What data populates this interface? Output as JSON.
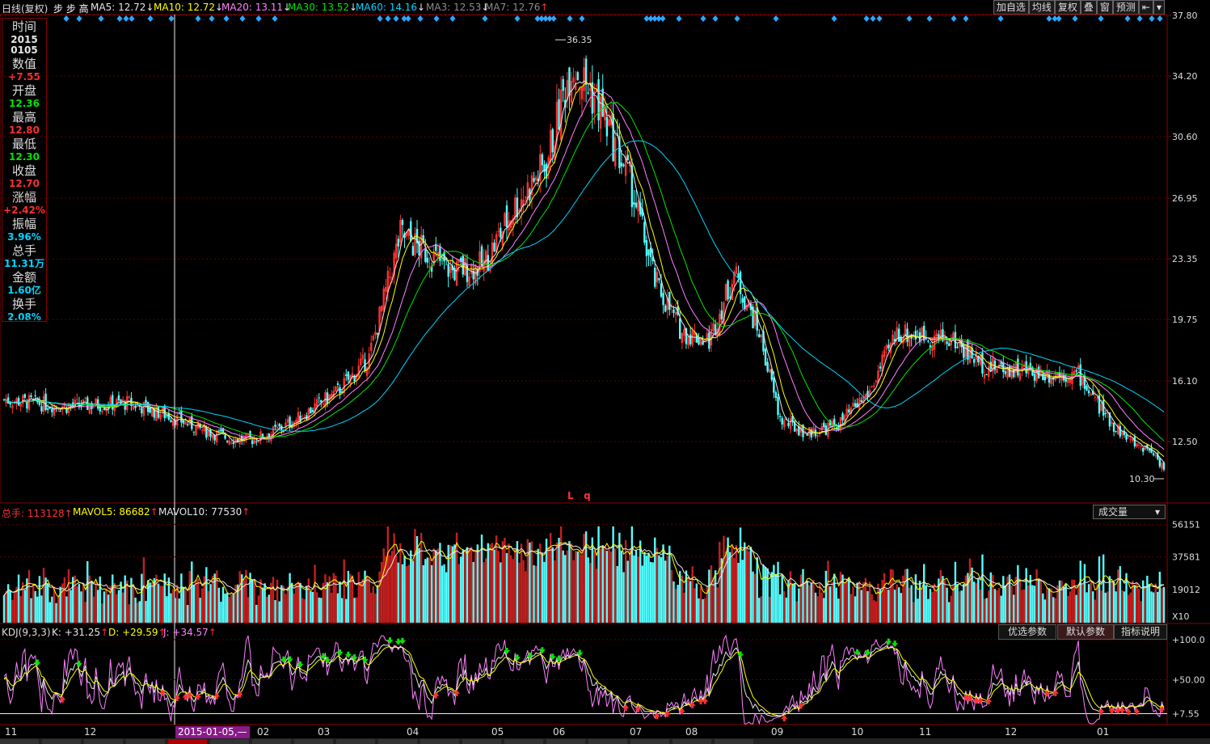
{
  "header": {
    "period_label": "日线(复权)",
    "stock_name": "步 步 高",
    "ma": [
      {
        "label": "MA5:",
        "value": "12.72",
        "arrow": "↓",
        "color": "#e6e6e6"
      },
      {
        "label": "MA10:",
        "value": "12.72",
        "arrow": "↓",
        "color": "#ffff00"
      },
      {
        "label": "MA20:",
        "value": "13.11",
        "arrow": "↓",
        "color": "#ff80ff"
      },
      {
        "label": "MA30:",
        "value": "13.52",
        "arrow": "↓",
        "color": "#00e600"
      },
      {
        "label": "MA60:",
        "value": "14.16",
        "arrow": "↓",
        "color": "#00d5ff"
      },
      {
        "label": "MA3:",
        "value": "12.53",
        "arrow": "↓",
        "color": "#8c8c8c"
      },
      {
        "label": "MA7:",
        "value": "12.76",
        "arrow": "↑",
        "color": "#8c8c8c"
      }
    ]
  },
  "toolbar": [
    "加自选",
    "均线",
    "复权",
    "叠",
    "窗",
    "预测",
    "⇤",
    "▾"
  ],
  "infobox": [
    {
      "label": "时间",
      "values": [
        "2015",
        "0105"
      ],
      "color": "#e6e6e6"
    },
    {
      "label": "数值",
      "values": [
        "+7.55"
      ],
      "color": "#ff3030"
    },
    {
      "label": "开盘",
      "values": [
        "12.36"
      ],
      "color": "#00e600"
    },
    {
      "label": "最高",
      "values": [
        "12.80"
      ],
      "color": "#ff3030"
    },
    {
      "label": "最低",
      "values": [
        "12.30"
      ],
      "color": "#00e600"
    },
    {
      "label": "收盘",
      "values": [
        "12.70"
      ],
      "color": "#ff3030"
    },
    {
      "label": "涨幅",
      "values": [
        "+2.42%"
      ],
      "color": "#ff3030"
    },
    {
      "label": "振幅",
      "values": [
        "3.96%"
      ],
      "color": "#00d5ff"
    },
    {
      "label": "总手",
      "values": [
        "11.31万"
      ],
      "color": "#00d5ff"
    },
    {
      "label": "金额",
      "values": [
        "1.60亿"
      ],
      "color": "#00d5ff"
    },
    {
      "label": "换手",
      "values": [
        "2.08%"
      ],
      "color": "#00d5ff"
    }
  ],
  "volume_header": {
    "items": [
      {
        "label": "总手:",
        "value": "113128",
        "arrow": "↑",
        "color": "#ff3030"
      },
      {
        "label": "MAVOL5:",
        "value": "86682",
        "arrow": "↑",
        "color": "#ffff00"
      },
      {
        "label": "MAVOL10:",
        "value": "77530",
        "arrow": "↑",
        "color": "#e6e6e6"
      }
    ],
    "dropdown": "成交量",
    "dropdown_arrow": "▾"
  },
  "kdj_header": {
    "name": "KDJ(9,3,3)",
    "items": [
      {
        "label": "K:",
        "value": "+31.25",
        "arrow": "↑",
        "color": "#e6e6e6"
      },
      {
        "label": "D:",
        "value": "+29.59",
        "arrow": "↑",
        "color": "#ffff00"
      },
      {
        "label": "J:",
        "value": "+34.57",
        "arrow": "↑",
        "color": "#ff80ff"
      }
    ],
    "buttons": [
      "优选参数",
      "默认参数",
      "指标说明"
    ]
  },
  "cursor_date": "2015-01-05,—",
  "marks": {
    "lq": "L   q"
  },
  "chart_data": [
    {
      "type": "candlestick",
      "panel": "price",
      "y_axis_ticks": [
        "37.80",
        "34.20",
        "30.60",
        "26.95",
        "23.35",
        "19.75",
        "16.10",
        "12.50"
      ],
      "ylim": [
        10.3,
        37.8
      ],
      "annotations": [
        {
          "text": "36.35",
          "value": 36.35,
          "kind": "high"
        },
        {
          "text": "10.30",
          "value": 10.3,
          "kind": "low"
        }
      ],
      "x_month_labels": [
        "11",
        "12",
        "01",
        "02",
        "03",
        "04",
        "05",
        "06",
        "07",
        "08",
        "09",
        "10",
        "11",
        "12",
        "01"
      ],
      "close_anchors": [
        [
          0,
          15.0
        ],
        [
          30,
          14.6
        ],
        [
          60,
          14.8
        ],
        [
          80,
          14.0
        ],
        [
          95,
          13.2
        ],
        [
          108,
          12.7
        ],
        [
          118,
          12.6
        ],
        [
          128,
          13.0
        ],
        [
          140,
          13.8
        ],
        [
          160,
          15.5
        ],
        [
          175,
          17.5
        ],
        [
          190,
          24.8
        ],
        [
          205,
          23.5
        ],
        [
          215,
          22.6
        ],
        [
          230,
          23.0
        ],
        [
          245,
          26.5
        ],
        [
          260,
          29.0
        ],
        [
          272,
          35.0
        ],
        [
          285,
          32.5
        ],
        [
          300,
          28.0
        ],
        [
          312,
          22.0
        ],
        [
          325,
          19.0
        ],
        [
          338,
          18.5
        ],
        [
          350,
          22.5
        ],
        [
          362,
          19.0
        ],
        [
          372,
          13.8
        ],
        [
          385,
          13.0
        ],
        [
          400,
          13.5
        ],
        [
          415,
          15.5
        ],
        [
          428,
          19.0
        ],
        [
          440,
          18.8
        ],
        [
          455,
          18.5
        ],
        [
          470,
          17.0
        ],
        [
          485,
          16.8
        ],
        [
          500,
          16.5
        ],
        [
          515,
          16.5
        ],
        [
          528,
          14.0
        ],
        [
          540,
          12.5
        ],
        [
          550,
          12.0
        ],
        [
          556,
          11.0
        ]
      ],
      "series": [
        {
          "name": "MA5",
          "color": "#e6e6e6"
        },
        {
          "name": "MA10",
          "color": "#ffff00"
        },
        {
          "name": "MA20",
          "color": "#ff80ff"
        },
        {
          "name": "MA30",
          "color": "#00e600"
        },
        {
          "name": "MA60",
          "color": "#00d5ff"
        }
      ]
    },
    {
      "type": "bar",
      "panel": "volume",
      "y_axis_ticks": [
        "56151",
        "37581",
        "19012"
      ],
      "ylim": [
        0,
        60000
      ],
      "unit_label": "X10",
      "series": [
        {
          "name": "MAVOL5",
          "color": "#ffff00"
        },
        {
          "name": "MAVOL10",
          "color": "#e6e6e6"
        }
      ]
    },
    {
      "type": "line",
      "panel": "kdj",
      "y_axis_ticks": [
        "+100.0",
        "+50.00",
        "+7.55"
      ],
      "ylim": [
        0,
        100
      ],
      "series": [
        {
          "name": "K",
          "color": "#e6e6e6"
        },
        {
          "name": "D",
          "color": "#ffff00"
        },
        {
          "name": "J",
          "color": "#ff80ff"
        }
      ]
    }
  ]
}
